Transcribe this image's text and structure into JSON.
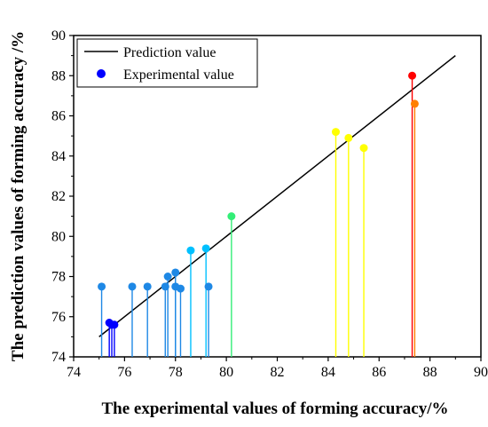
{
  "chart_data": {
    "type": "scatter",
    "xlabel": "The experimental values of forming accuracy/%",
    "ylabel": "The prediction values of forming accuracy /%",
    "xlim": [
      74,
      90
    ],
    "ylim": [
      74,
      90
    ],
    "x_ticks": [
      74,
      76,
      78,
      80,
      82,
      84,
      86,
      88,
      90
    ],
    "y_ticks": [
      74,
      76,
      78,
      80,
      82,
      84,
      86,
      88,
      90
    ],
    "x_tick_labels": [
      "74",
      "76",
      "78",
      "80",
      "82",
      "84",
      "86",
      "88",
      "90"
    ],
    "y_tick_labels": [
      "74",
      "76",
      "78",
      "80",
      "82",
      "84",
      "86",
      "88",
      "90"
    ],
    "grid": false,
    "legend_position": "top-left",
    "series": [
      {
        "name": "Prediction value",
        "kind": "line",
        "color": "#000000",
        "x": [
          75,
          89
        ],
        "y": [
          75,
          89
        ]
      },
      {
        "name": "Experimental value",
        "kind": "stem-scatter",
        "legend_color": "#0000ff",
        "points": [
          {
            "x": 75.1,
            "y": 77.5,
            "color": "#1e88e5"
          },
          {
            "x": 75.4,
            "y": 75.7,
            "color": "#0000ff"
          },
          {
            "x": 75.5,
            "y": 75.6,
            "color": "#0000ff"
          },
          {
            "x": 75.6,
            "y": 75.6,
            "color": "#0000ff"
          },
          {
            "x": 76.3,
            "y": 77.5,
            "color": "#1e88e5"
          },
          {
            "x": 76.9,
            "y": 77.5,
            "color": "#1e88e5"
          },
          {
            "x": 77.6,
            "y": 77.5,
            "color": "#1e88e5"
          },
          {
            "x": 77.7,
            "y": 78.0,
            "color": "#1e88e5"
          },
          {
            "x": 78.0,
            "y": 77.5,
            "color": "#1e88e5"
          },
          {
            "x": 78.0,
            "y": 78.2,
            "color": "#1e88e5"
          },
          {
            "x": 78.2,
            "y": 77.4,
            "color": "#1e88e5"
          },
          {
            "x": 78.6,
            "y": 79.3,
            "color": "#00c0ff"
          },
          {
            "x": 79.2,
            "y": 79.4,
            "color": "#00c0ff"
          },
          {
            "x": 79.3,
            "y": 77.5,
            "color": "#1e88e5"
          },
          {
            "x": 80.2,
            "y": 81.0,
            "color": "#33ee77"
          },
          {
            "x": 84.3,
            "y": 85.2,
            "color": "#ffff00"
          },
          {
            "x": 84.8,
            "y": 84.9,
            "color": "#ffff00"
          },
          {
            "x": 85.4,
            "y": 84.4,
            "color": "#ffff00"
          },
          {
            "x": 87.3,
            "y": 88.0,
            "color": "#ff0000"
          },
          {
            "x": 87.4,
            "y": 86.6,
            "color": "#ff7f00"
          }
        ]
      }
    ]
  }
}
